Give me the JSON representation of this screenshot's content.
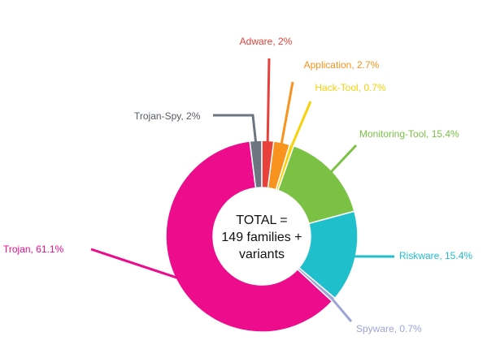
{
  "chart_data": {
    "type": "pie",
    "style": "donut",
    "center_label": [
      "TOTAL =",
      "149 families +",
      "variants"
    ],
    "slices": [
      {
        "name": "Adware",
        "value": 2,
        "label": "Adware, 2%",
        "color": "#e8403a"
      },
      {
        "name": "Application",
        "value": 2.7,
        "label": "Application, 2.7%",
        "color": "#f7931e"
      },
      {
        "name": "Hack-Tool",
        "value": 0.7,
        "label": "Hack-Tool, 0.7%",
        "color": "#f5d20b"
      },
      {
        "name": "Monitoring-Tool",
        "value": 15.4,
        "label": "Monitoring-Tool, 15.4%",
        "color": "#7bc144"
      },
      {
        "name": "Riskware",
        "value": 15.4,
        "label": "Riskware, 15.4%",
        "color": "#1fbfcb"
      },
      {
        "name": "Spyware",
        "value": 0.7,
        "label": "Spyware, 0.7%",
        "color": "#9ea5d6"
      },
      {
        "name": "Trojan",
        "value": 61.1,
        "label": "Trojan, 61.1%",
        "color": "#ec0c8c"
      },
      {
        "name": "Trojan-Spy",
        "value": 2,
        "label": "Trojan-Spy, 2%",
        "color": "#6d7580"
      }
    ]
  }
}
